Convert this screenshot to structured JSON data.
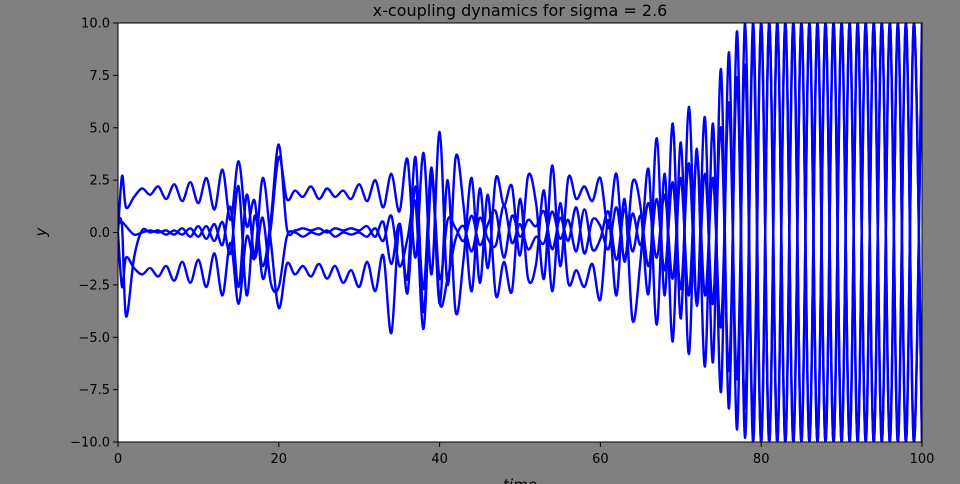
{
  "figure": {
    "background": "#808080"
  },
  "chart_data": {
    "type": "line",
    "title": "x-coupling dynamics for sigma = 2.6",
    "xlabel": "time",
    "ylabel": "y",
    "xlim": [
      0,
      100
    ],
    "ylim": [
      -10,
      10
    ],
    "xticks": [
      0,
      20,
      40,
      60,
      80,
      100
    ],
    "yticks": [
      -10.0,
      -7.5,
      -5.0,
      -2.5,
      0.0,
      2.5,
      5.0,
      7.5,
      10.0
    ],
    "xtick_labels": [
      "0",
      "20",
      "40",
      "60",
      "80",
      "100"
    ],
    "ytick_labels": [
      "−10.0",
      "−7.5",
      "−5.0",
      "−2.5",
      "0.0",
      "2.5",
      "5.0",
      "7.5",
      "10.0"
    ],
    "grid": false,
    "line_color": "#0000ff",
    "series": [
      {
        "x": [
          0,
          0.5,
          1,
          2,
          3,
          4,
          5,
          6,
          7,
          8,
          9,
          10,
          11,
          12,
          13,
          14,
          15,
          16,
          17,
          18,
          19,
          20,
          21,
          22,
          23,
          24,
          25,
          26,
          27,
          28,
          29,
          30,
          31,
          32,
          33,
          34,
          35,
          36,
          37,
          38,
          39,
          40,
          41,
          42,
          43,
          44,
          45,
          46,
          47,
          48,
          49,
          50,
          51,
          52,
          53,
          54,
          55,
          56,
          57,
          58,
          59,
          60,
          61,
          62,
          63,
          64,
          65,
          66,
          67,
          68,
          69,
          70,
          71,
          72,
          73,
          74,
          75,
          76,
          77,
          78,
          79,
          80,
          81,
          82,
          83,
          84,
          85,
          86,
          87,
          88,
          89,
          90,
          91,
          92,
          93,
          94,
          95,
          96,
          97,
          98,
          99,
          100
        ],
        "y": [
          0,
          2.7,
          1.2,
          1.7,
          2.1,
          1.8,
          2.2,
          1.6,
          2.3,
          1.5,
          2.4,
          1.4,
          2.6,
          1.1,
          3.0,
          0.6,
          3.4,
          0.3,
          1.5,
          -2.2,
          0.2,
          3.6,
          1.6,
          2.0,
          1.7,
          2.2,
          1.6,
          2.1,
          1.7,
          2.0,
          1.6,
          2.3,
          1.5,
          2.5,
          1.2,
          2.8,
          1.0,
          3.5,
          -1.2,
          3.8,
          -2.0,
          4.8,
          -2.5,
          3.6,
          1.2,
          -2.8,
          2.1,
          -1.7,
          2.6,
          1.3,
          2.2,
          -1.1,
          2.7,
          1.4,
          -2.2,
          3.2,
          -1.6,
          2.6,
          1.6,
          2.2,
          1.5,
          2.6,
          0.2,
          2.8,
          -1.4,
          2.4,
          1.2,
          -2.9,
          4.5,
          -3.0,
          5.2,
          -4.1,
          6.0,
          -3.4,
          5.5,
          -6.2,
          7.8,
          -8.4,
          9.6,
          -9.8,
          10,
          -10,
          10,
          -10,
          10,
          -10,
          10,
          -10,
          10,
          -10,
          10,
          -10,
          10,
          -10,
          10,
          -10,
          10,
          -10,
          10,
          -10,
          10,
          -10
        ]
      },
      {
        "x": [
          0,
          0.5,
          1,
          2,
          3,
          4,
          5,
          6,
          7,
          8,
          9,
          10,
          11,
          12,
          13,
          14,
          15,
          16,
          17,
          18,
          19,
          20,
          21,
          22,
          23,
          24,
          25,
          26,
          27,
          28,
          29,
          30,
          31,
          32,
          33,
          34,
          35,
          36,
          37,
          38,
          39,
          40,
          41,
          42,
          43,
          44,
          45,
          46,
          47,
          48,
          49,
          50,
          51,
          52,
          53,
          54,
          55,
          56,
          57,
          58,
          59,
          60,
          61,
          62,
          63,
          64,
          65,
          66,
          67,
          68,
          69,
          70,
          71,
          72,
          73,
          74,
          75,
          76,
          77,
          78,
          79,
          80,
          81,
          82,
          83,
          84,
          85,
          86,
          87,
          88,
          89,
          90,
          91,
          92,
          93,
          94,
          95,
          96,
          97,
          98,
          99,
          100
        ],
        "y": [
          0,
          -2.6,
          -1.2,
          -1.7,
          -2.0,
          -1.7,
          -2.1,
          -1.6,
          -2.3,
          -1.4,
          -2.4,
          -1.3,
          -2.6,
          -1.0,
          -3.0,
          -0.5,
          -3.4,
          -0.2,
          -1.2,
          2.6,
          -0.4,
          -3.6,
          -1.5,
          -2.0,
          -1.6,
          -2.1,
          -1.5,
          -2.2,
          -1.6,
          -2.4,
          -1.8,
          -2.6,
          -1.4,
          -2.8,
          -1.1,
          -4.8,
          0.4,
          -2.9,
          2.2,
          -2.7,
          3.1,
          -3.4,
          2.5,
          -3.8,
          -1.2,
          2.6,
          -2.4,
          1.8,
          -3.0,
          -1.4,
          -2.8,
          1.6,
          -2.2,
          -1.5,
          2.0,
          -2.8,
          1.4,
          -2.4,
          -1.8,
          -2.6,
          -1.5,
          -3.2,
          0.6,
          -3.0,
          1.6,
          -4.2,
          -1.3,
          3.0,
          -4.4,
          2.8,
          -5.2,
          4.3,
          -5.8,
          4.0,
          -6.4,
          5.2,
          -7.6,
          8.6,
          -9.4,
          10,
          -10,
          10,
          -10,
          10,
          -10,
          10,
          -10,
          10,
          -10,
          10,
          -10,
          10,
          -10,
          10,
          -10,
          10,
          -10,
          10,
          -10,
          10,
          -10,
          10
        ]
      },
      {
        "x": [
          0,
          0.5,
          1,
          2,
          3,
          4,
          5,
          6,
          7,
          8,
          9,
          10,
          11,
          12,
          13,
          14,
          15,
          16,
          17,
          18,
          19,
          20,
          21,
          22,
          23,
          24,
          25,
          26,
          27,
          28,
          29,
          30,
          31,
          32,
          33,
          34,
          35,
          36,
          37,
          38,
          39,
          40,
          41,
          42,
          43,
          44,
          45,
          46,
          47,
          48,
          49,
          50,
          51,
          52,
          53,
          54,
          55,
          56,
          57,
          58,
          59,
          60,
          61,
          62,
          63,
          64,
          65,
          66,
          67,
          68,
          69,
          70,
          71,
          72,
          73,
          74,
          75,
          76,
          77,
          78,
          79,
          80,
          81,
          82,
          83,
          84,
          85,
          86,
          87,
          88,
          89,
          90,
          91,
          92,
          93,
          94,
          95,
          96,
          97,
          98,
          99,
          100
        ],
        "y": [
          0.5,
          0.3,
          -4.0,
          -1.2,
          0.1,
          0.0,
          0.1,
          -0.1,
          0.1,
          -0.1,
          0.2,
          -0.2,
          0.3,
          -0.4,
          0.5,
          -1.0,
          2.2,
          -3.0,
          0.8,
          -1.6,
          0.6,
          4.2,
          0.2,
          0.1,
          0.2,
          0.1,
          0.2,
          0.0,
          0.2,
          0.1,
          0.2,
          0.1,
          0.3,
          -0.2,
          0.5,
          -1.5,
          0.4,
          -2.2,
          3.6,
          -3.8,
          2.8,
          -2.2,
          0.6,
          0.2,
          -0.4,
          0.8,
          -0.6,
          0.4,
          1.0,
          -1.2,
          0.8,
          -0.2,
          0.6,
          0.3,
          1.0,
          -0.8,
          0.7,
          -0.4,
          1.2,
          -1.0,
          0.6,
          0.3,
          -0.8,
          1.2,
          -1.2,
          0.9,
          -0.6,
          1.4,
          -1.2,
          1.8,
          -2.2,
          2.6,
          -3.0,
          3.6,
          -3.0,
          2.6,
          -4.5,
          6.2,
          -7.0,
          8.0,
          -9.0,
          10,
          -10,
          10,
          -10,
          10,
          -10,
          10,
          -10,
          10,
          -10,
          10,
          -10,
          10,
          -10,
          10,
          -10,
          10,
          -10,
          10,
          -10,
          10
        ]
      },
      {
        "x": [
          0,
          0.5,
          1,
          2,
          3,
          4,
          5,
          6,
          7,
          8,
          9,
          10,
          11,
          12,
          13,
          14,
          15,
          16,
          17,
          18,
          19,
          20,
          21,
          22,
          23,
          24,
          25,
          26,
          27,
          28,
          29,
          30,
          31,
          32,
          33,
          34,
          35,
          36,
          37,
          38,
          39,
          40,
          41,
          42,
          43,
          44,
          45,
          46,
          47,
          48,
          49,
          50,
          51,
          52,
          53,
          54,
          55,
          56,
          57,
          58,
          59,
          60,
          61,
          62,
          63,
          64,
          65,
          66,
          67,
          68,
          69,
          70,
          71,
          72,
          73,
          74,
          75,
          76,
          77,
          78,
          79,
          80,
          81,
          82,
          83,
          84,
          85,
          86,
          87,
          88,
          89,
          90,
          91,
          92,
          93,
          94,
          95,
          96,
          97,
          98,
          99,
          100
        ],
        "y": [
          0.4,
          0.5,
          0.3,
          -0.1,
          0.0,
          0.1,
          0.0,
          0.1,
          -0.1,
          0.2,
          -0.2,
          0.3,
          -0.3,
          0.4,
          -0.6,
          1.2,
          -2.6,
          1.8,
          -1.2,
          0.7,
          -2.4,
          -2.6,
          -0.2,
          0.0,
          -0.2,
          0.0,
          -0.1,
          0.1,
          -0.2,
          0.0,
          -0.1,
          0.0,
          -0.2,
          0.2,
          -0.4,
          0.8,
          -1.6,
          -0.3,
          1.4,
          -4.6,
          2.6,
          -3.3,
          -2.2,
          -0.3,
          0.3,
          -0.9,
          0.7,
          -0.3,
          -0.6,
          1.3,
          -0.5,
          0.4,
          -0.8,
          -0.2,
          -0.5,
          1.0,
          -0.3,
          0.6,
          -0.9,
          1.1,
          -0.8,
          -0.3,
          1.0,
          -1.3,
          1.1,
          -0.9,
          0.8,
          -1.6,
          1.6,
          -1.8,
          2.4,
          -2.7,
          3.3,
          -3.5,
          2.8,
          -3.4,
          5.0,
          -6.6,
          7.4,
          -8.4,
          9.2,
          -10,
          10,
          -10,
          10,
          -10,
          10,
          -10,
          10,
          -10,
          10,
          -10,
          10,
          -10,
          10,
          -10,
          10,
          -10,
          10,
          -10,
          10,
          -10
        ]
      }
    ]
  }
}
